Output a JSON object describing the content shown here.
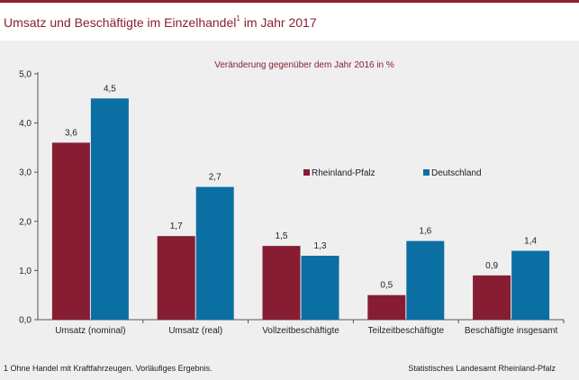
{
  "title": {
    "text": "Umsatz und Beschäftigte im Einzelhandel",
    "footnote_marker": "1",
    "suffix": " im Jahr 2017"
  },
  "footnote": "1 Ohne Handel mit Kraftfahrzeugen. Vorläufiges Ergebnis.",
  "source": "Statistisches Landesamt Rheinland-Pfalz",
  "colors": {
    "accent": "#8a1f33",
    "rheinland_pfalz": "#861d33",
    "deutschland": "#0b6fa4",
    "panel_bg": "#efefef"
  },
  "chart_data": {
    "type": "bar",
    "subtitle": "Veränderung gegenüber dem Jahr 2016 in %",
    "categories": [
      "Umsatz (nominal)",
      "Umsatz (real)",
      "Vollzeitbeschäftigte",
      "Teilzeitbeschäftigte",
      "Beschäftigte insgesamt"
    ],
    "series": [
      {
        "name": "Rheinland-Pfalz",
        "values": [
          3.6,
          1.7,
          1.5,
          0.5,
          0.9
        ],
        "labels": [
          "3,6",
          "1,7",
          "1,5",
          "0,5",
          "0,9"
        ]
      },
      {
        "name": "Deutschland",
        "values": [
          4.5,
          2.7,
          1.3,
          1.6,
          1.4
        ],
        "labels": [
          "4,5",
          "2,7",
          "1,3",
          "1,6",
          "1,4"
        ]
      }
    ],
    "ylim": [
      0,
      5
    ],
    "yticks": [
      0,
      1,
      2,
      3,
      4,
      5
    ],
    "ytick_labels": [
      "0,0",
      "1,0",
      "2,0",
      "3,0",
      "4,0",
      "5,0"
    ],
    "xlabel": "",
    "ylabel": "",
    "grid": false,
    "legend_position": "top-right"
  }
}
